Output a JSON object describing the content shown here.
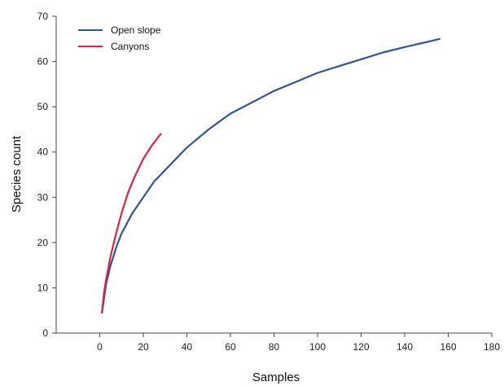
{
  "chart_data": {
    "type": "line",
    "xlabel": "Samples",
    "ylabel": "Species count",
    "xlim": [
      -20,
      180
    ],
    "ylim": [
      0,
      70
    ],
    "xticks": [
      0,
      20,
      40,
      60,
      80,
      100,
      120,
      140,
      160,
      180
    ],
    "yticks": [
      0,
      10,
      20,
      30,
      40,
      50,
      60,
      70
    ],
    "grid": false,
    "legend": "top-left",
    "series": [
      {
        "name": "Open slope",
        "color": "#2f5597",
        "x": [
          1,
          3,
          5,
          8,
          10,
          15,
          20,
          25,
          30,
          40,
          50,
          60,
          70,
          80,
          90,
          100,
          110,
          120,
          130,
          140,
          150,
          156
        ],
        "y": [
          4.5,
          11,
          15,
          19.5,
          22,
          26.5,
          30,
          33.5,
          36,
          41,
          45,
          48.5,
          51,
          53.5,
          55.5,
          57.5,
          59,
          60.5,
          62,
          63.2,
          64.3,
          65
        ]
      },
      {
        "name": "Canyons",
        "color": "#e0223f",
        "x": [
          1,
          2,
          3,
          5,
          7,
          10,
          13,
          16,
          20,
          24,
          28
        ],
        "y": [
          4.5,
          9,
          12,
          17,
          21,
          26.5,
          31,
          34.5,
          38.5,
          41.5,
          44
        ]
      }
    ]
  }
}
